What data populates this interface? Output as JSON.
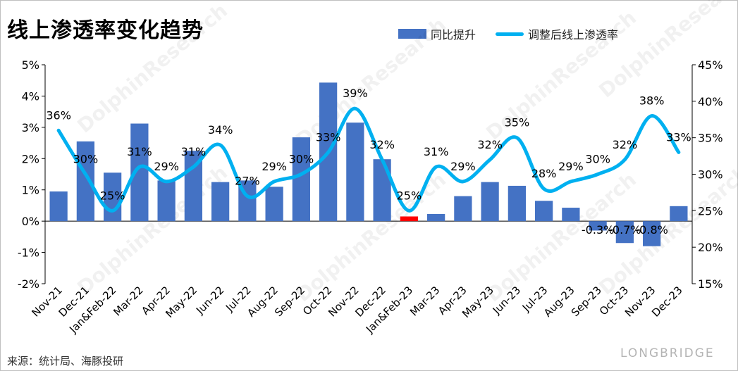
{
  "title": "线上渗透率变化趋势",
  "source": "来源：统计局、海豚投研",
  "brand": "LONGBRIDGE",
  "watermark": "DolphinResearch",
  "colors": {
    "bar": "#4472c4",
    "bar_highlight": "#ff0000",
    "line": "#00b0f0"
  },
  "chart_data": {
    "type": "bar",
    "categories": [
      "Nov-21",
      "Dec-21",
      "Jan&Feb-22",
      "Mar-22",
      "Apr-22",
      "May-22",
      "Jun-22",
      "Jul-22",
      "Aug-22",
      "Sep-22",
      "Oct-22",
      "Nov-22",
      "Dec-22",
      "Jan&Feb-23",
      "Mar-23",
      "Apr-23",
      "May-23",
      "Jun-23",
      "Jul-23",
      "Aug-23",
      "Sep-23",
      "Oct-23",
      "Nov-23",
      "Dec-23"
    ],
    "series": [
      {
        "name": "同比提升",
        "type": "bar",
        "axis": "left",
        "values": [
          0.95,
          2.55,
          1.55,
          3.12,
          1.3,
          2.25,
          1.25,
          1.3,
          1.1,
          2.68,
          4.43,
          3.15,
          1.98,
          0.15,
          0.23,
          0.8,
          1.25,
          1.13,
          0.65,
          0.43,
          -0.3,
          -0.7,
          -0.8,
          0.48
        ],
        "highlight_index": 13,
        "data_labels": {
          "20": "-0.3%",
          "21": "-0.7%",
          "22": "-0.8%"
        }
      },
      {
        "name": "调整后线上渗透率",
        "type": "line",
        "axis": "right",
        "values": [
          36,
          30,
          25,
          31,
          29,
          31,
          34,
          27,
          29,
          30,
          33,
          39,
          32,
          25,
          31,
          29,
          32,
          35,
          28,
          29,
          30,
          32,
          38,
          33
        ],
        "labels": [
          "36%",
          "30%",
          "25%",
          "31%",
          "29%",
          "31%",
          "34%",
          "27%",
          "29%",
          "30%",
          "33%",
          "39%",
          "32%",
          "25%",
          "31%",
          "29%",
          "32%",
          "35%",
          "28%",
          "29%",
          "30%",
          "32%",
          "38%",
          "33%"
        ]
      }
    ],
    "y_left": {
      "min": -2,
      "max": 5,
      "step": 1,
      "ticks": [
        "-2%",
        "-1%",
        "0%",
        "1%",
        "2%",
        "3%",
        "4%",
        "5%"
      ]
    },
    "y_right": {
      "min": 15,
      "max": 45,
      "step": 5,
      "ticks": [
        "15%",
        "20%",
        "25%",
        "30%",
        "35%",
        "40%",
        "45%"
      ]
    },
    "legend": "top-right",
    "grid": false
  }
}
